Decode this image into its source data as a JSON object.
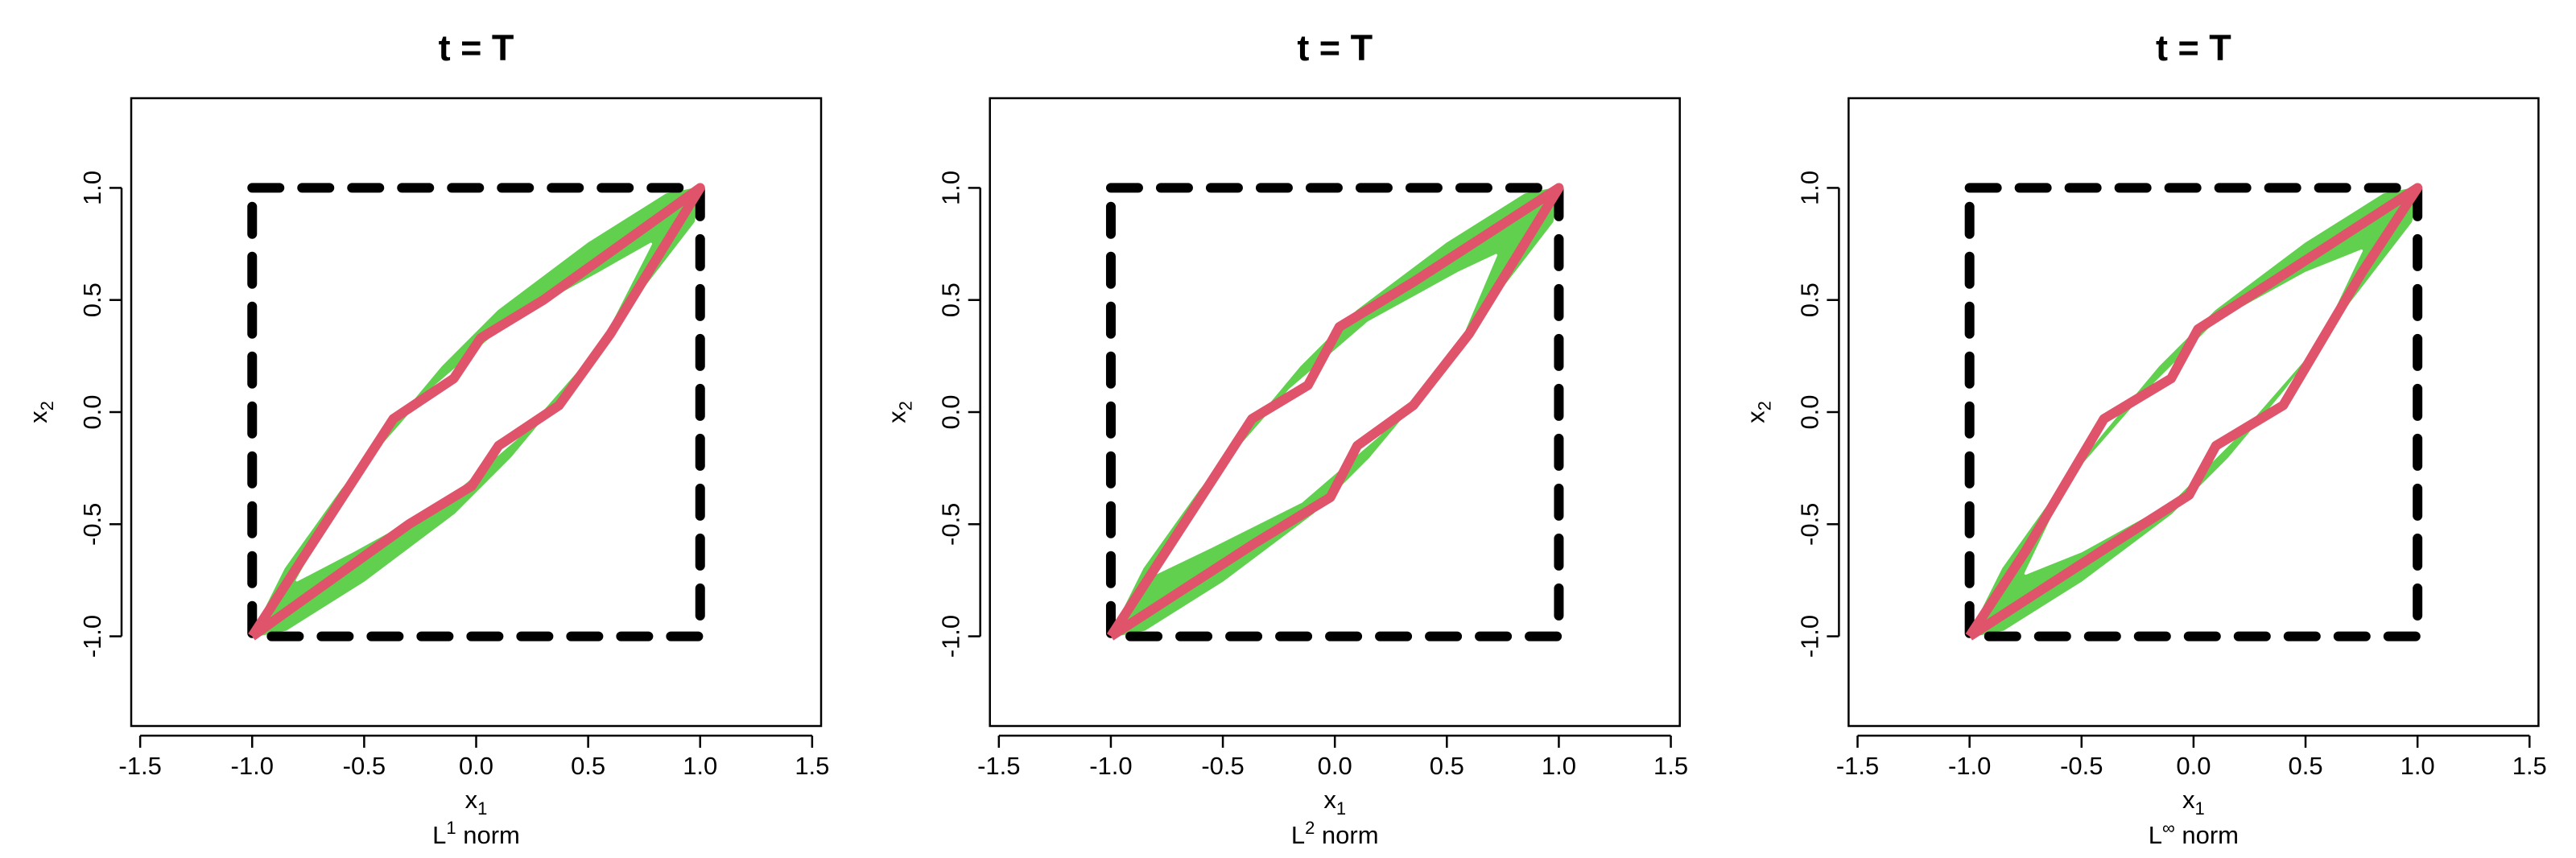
{
  "chart_data": [
    {
      "type": "line",
      "title": "t = T",
      "xlabel": {
        "main": "x",
        "sub": "1"
      },
      "ylabel": {
        "main": "x",
        "sub": "2"
      },
      "caption": {
        "main": "L",
        "sup": "1",
        "rest": " norm"
      },
      "xlim": [
        -1.54,
        1.54
      ],
      "ylim": [
        -1.4,
        1.4
      ],
      "xticks": [
        -1.5,
        {
          "value": -1,
          "label": "-1.0"
        },
        -0.5,
        {
          "value": 0,
          "label": "0.0"
        },
        0.5,
        {
          "value": 1,
          "label": "1.0"
        },
        1.5
      ],
      "yticks": [
        {
          "value": -1,
          "label": "-1.0"
        },
        -0.5,
        {
          "value": 0,
          "label": "0.0"
        },
        0.5,
        {
          "value": 1,
          "label": "1.0"
        }
      ],
      "series": [
        {
          "color": "#61d04f",
          "fill": true,
          "x": [
            -1,
            -0.85,
            -0.6,
            -0.4,
            -0.15,
            0.1,
            0.5,
            0.85,
            1,
            0.97,
            0.7,
            0.4,
            0.15,
            -0.1,
            -0.5,
            -0.85
          ],
          "values": [
            -1,
            -0.7,
            -0.35,
            -0.1,
            0.2,
            0.45,
            0.75,
            0.97,
            1,
            0.85,
            0.5,
            0.1,
            -0.2,
            -0.45,
            -0.75,
            -0.97
          ]
        },
        {
          "color": "#ffffff",
          "fill": true,
          "x": [
            -0.8,
            -0.55,
            -0.15,
            0.2,
            0.55,
            0.78,
            0.55,
            0.15,
            -0.2,
            -0.55
          ],
          "values": [
            -0.75,
            -0.62,
            -0.4,
            -0.1,
            0.3,
            0.75,
            0.62,
            0.4,
            0.1,
            -0.3
          ]
        },
        {
          "color": "#000000",
          "dash": true,
          "x": [
            -1,
            1,
            1,
            -1,
            -1
          ],
          "values": [
            1,
            1,
            -1,
            -1,
            1
          ]
        },
        {
          "color": "#df536b",
          "x": [
            -1,
            -0.37,
            -0.1,
            0.02,
            0.3,
            1,
            0.6,
            0.37,
            0.1,
            -0.02,
            -0.3,
            -1
          ],
          "values": [
            -1,
            -0.03,
            0.15,
            0.33,
            0.5,
            1,
            0.35,
            0.03,
            -0.15,
            -0.33,
            -0.5,
            -1
          ]
        }
      ]
    },
    {
      "type": "line",
      "title": "t = T",
      "xlabel": {
        "main": "x",
        "sub": "1"
      },
      "ylabel": {
        "main": "x",
        "sub": "2"
      },
      "caption": {
        "main": "L",
        "sup": "2",
        "rest": " norm"
      },
      "xlim": [
        -1.54,
        1.54
      ],
      "ylim": [
        -1.4,
        1.4
      ],
      "xticks": [
        -1.5,
        {
          "value": -1,
          "label": "-1.0"
        },
        -0.5,
        {
          "value": 0,
          "label": "0.0"
        },
        0.5,
        {
          "value": 1,
          "label": "1.0"
        },
        1.5
      ],
      "yticks": [
        {
          "value": -1,
          "label": "-1.0"
        },
        -0.5,
        {
          "value": 0,
          "label": "0.0"
        },
        0.5,
        {
          "value": 1,
          "label": "1.0"
        }
      ],
      "series": [
        {
          "color": "#61d04f",
          "fill": true,
          "x": [
            -1,
            -0.85,
            -0.6,
            -0.4,
            -0.15,
            0.1,
            0.5,
            0.85,
            1,
            0.97,
            0.7,
            0.4,
            0.15,
            -0.1,
            -0.5,
            -0.85
          ],
          "values": [
            -1,
            -0.7,
            -0.35,
            -0.1,
            0.2,
            0.45,
            0.75,
            0.97,
            1,
            0.85,
            0.5,
            0.1,
            -0.2,
            -0.45,
            -0.75,
            -0.97
          ]
        },
        {
          "color": "#ffffff",
          "fill": true,
          "x": [
            -0.8,
            -0.55,
            -0.15,
            0.2,
            0.55,
            0.72,
            0.55,
            0.15,
            -0.2,
            -0.55
          ],
          "values": [
            -0.72,
            -0.6,
            -0.4,
            -0.1,
            0.3,
            0.7,
            0.62,
            0.4,
            0.1,
            -0.3
          ]
        },
        {
          "color": "#000000",
          "dash": true,
          "x": [
            -1,
            1,
            1,
            -1,
            -1
          ],
          "values": [
            1,
            1,
            -1,
            -1,
            1
          ]
        },
        {
          "color": "#df536b",
          "x": [
            -1,
            -0.37,
            -0.12,
            0.02,
            0.35,
            1,
            0.6,
            0.35,
            0.1,
            -0.02,
            -0.35,
            -1
          ],
          "values": [
            -1,
            -0.03,
            0.12,
            0.38,
            0.58,
            1,
            0.35,
            0.03,
            -0.15,
            -0.38,
            -0.58,
            -1
          ]
        }
      ]
    },
    {
      "type": "line",
      "title": "t = T",
      "xlabel": {
        "main": "x",
        "sub": "1"
      },
      "ylabel": {
        "main": "x",
        "sub": "2"
      },
      "caption": {
        "main": "L",
        "sup": "∞",
        "rest": " norm"
      },
      "xlim": [
        -1.54,
        1.54
      ],
      "ylim": [
        -1.4,
        1.4
      ],
      "xticks": [
        -1.5,
        {
          "value": -1,
          "label": "-1.0"
        },
        -0.5,
        {
          "value": 0,
          "label": "0.0"
        },
        0.5,
        {
          "value": 1,
          "label": "1.0"
        },
        1.5
      ],
      "yticks": [
        {
          "value": -1,
          "label": "-1.0"
        },
        -0.5,
        {
          "value": 0,
          "label": "0.0"
        },
        0.5,
        {
          "value": 1,
          "label": "1.0"
        }
      ],
      "series": [
        {
          "color": "#61d04f",
          "fill": true,
          "x": [
            -1,
            -0.85,
            -0.6,
            -0.4,
            -0.15,
            0.1,
            0.5,
            0.85,
            1,
            0.97,
            0.7,
            0.4,
            0.15,
            -0.1,
            -0.5,
            -0.85
          ],
          "values": [
            -1,
            -0.7,
            -0.35,
            -0.1,
            0.2,
            0.45,
            0.75,
            0.97,
            1,
            0.85,
            0.5,
            0.1,
            -0.2,
            -0.45,
            -0.75,
            -0.97
          ]
        },
        {
          "color": "#ffffff",
          "fill": true,
          "x": [
            -0.75,
            -0.5,
            -0.1,
            0.2,
            0.55,
            0.75,
            0.5,
            0.1,
            -0.2,
            -0.55
          ],
          "values": [
            -0.72,
            -0.62,
            -0.4,
            -0.1,
            0.3,
            0.72,
            0.62,
            0.4,
            0.1,
            -0.3
          ]
        },
        {
          "color": "#000000",
          "dash": true,
          "x": [
            -1,
            1,
            1,
            -1,
            -1
          ],
          "values": [
            1,
            1,
            -1,
            -1,
            1
          ]
        },
        {
          "color": "#df536b",
          "x": [
            -1,
            -0.75,
            -0.4,
            -0.1,
            0.02,
            0.35,
            1,
            0.75,
            0.4,
            0.1,
            -0.02,
            -0.35,
            -1
          ],
          "values": [
            -1,
            -0.62,
            -0.03,
            0.15,
            0.37,
            0.58,
            1,
            0.62,
            0.03,
            -0.15,
            -0.37,
            -0.58,
            -1
          ]
        }
      ]
    }
  ]
}
